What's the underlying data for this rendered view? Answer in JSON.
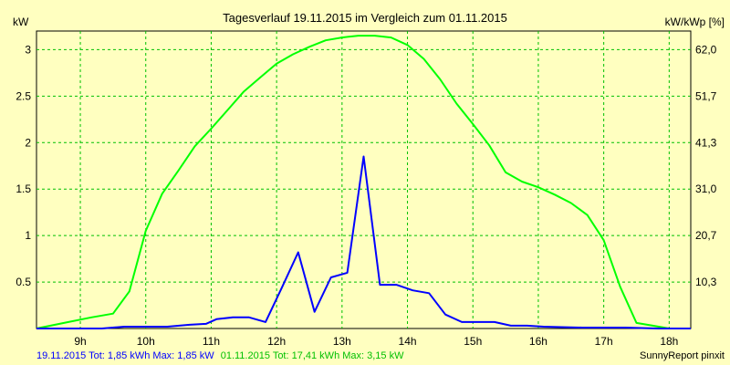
{
  "chart_data": {
    "type": "line",
    "title": "Tagesverlauf 19.11.2015 im Vergleich zum 01.11.2015",
    "ylabel_left": "kW",
    "ylabel_right": "kW/kWp [%]",
    "x_range_hours": [
      8.33,
      18.33
    ],
    "x_ticks": [
      {
        "h": 9,
        "label": "9h"
      },
      {
        "h": 10,
        "label": "10h"
      },
      {
        "h": 11,
        "label": "11h"
      },
      {
        "h": 12,
        "label": "12h"
      },
      {
        "h": 13,
        "label": "13h"
      },
      {
        "h": 14,
        "label": "14h"
      },
      {
        "h": 15,
        "label": "15h"
      },
      {
        "h": 16,
        "label": "16h"
      },
      {
        "h": 17,
        "label": "17h"
      },
      {
        "h": 18,
        "label": "18h"
      }
    ],
    "ylim": [
      0,
      3.2
    ],
    "y_ticks_left": [
      {
        "v": 0.5,
        "label": "0.5"
      },
      {
        "v": 1,
        "label": "1"
      },
      {
        "v": 1.5,
        "label": "1.5"
      },
      {
        "v": 2,
        "label": "2"
      },
      {
        "v": 2.5,
        "label": "2.5"
      },
      {
        "v": 3,
        "label": "3"
      }
    ],
    "y_ticks_right": [
      {
        "v": 0.5,
        "label": "10,3"
      },
      {
        "v": 1,
        "label": "20,7"
      },
      {
        "v": 1.5,
        "label": "31,0"
      },
      {
        "v": 2,
        "label": "41,3"
      },
      {
        "v": 2.5,
        "label": "51,7"
      },
      {
        "v": 3,
        "label": "62,0"
      }
    ],
    "grid": true,
    "series": [
      {
        "color": "#00ff00",
        "points": [
          [
            8.33,
            0.0
          ],
          [
            8.75,
            0.06
          ],
          [
            9.17,
            0.12
          ],
          [
            9.5,
            0.16
          ],
          [
            9.75,
            0.4
          ],
          [
            10.0,
            1.05
          ],
          [
            10.25,
            1.45
          ],
          [
            10.5,
            1.7
          ],
          [
            10.75,
            1.96
          ],
          [
            11.0,
            2.15
          ],
          [
            11.25,
            2.35
          ],
          [
            11.5,
            2.55
          ],
          [
            11.75,
            2.7
          ],
          [
            12.0,
            2.85
          ],
          [
            12.25,
            2.95
          ],
          [
            12.5,
            3.03
          ],
          [
            12.75,
            3.1
          ],
          [
            13.0,
            3.13
          ],
          [
            13.25,
            3.15
          ],
          [
            13.5,
            3.15
          ],
          [
            13.75,
            3.13
          ],
          [
            14.0,
            3.05
          ],
          [
            14.25,
            2.9
          ],
          [
            14.5,
            2.68
          ],
          [
            14.75,
            2.42
          ],
          [
            15.0,
            2.2
          ],
          [
            15.25,
            1.97
          ],
          [
            15.5,
            1.68
          ],
          [
            15.75,
            1.58
          ],
          [
            16.0,
            1.52
          ],
          [
            16.25,
            1.44
          ],
          [
            16.5,
            1.35
          ],
          [
            16.75,
            1.22
          ],
          [
            17.0,
            0.95
          ],
          [
            17.25,
            0.45
          ],
          [
            17.5,
            0.06
          ],
          [
            17.75,
            0.03
          ],
          [
            18.0,
            0.0
          ],
          [
            18.33,
            0.0
          ]
        ]
      },
      {
        "color": "#0000ff",
        "points": [
          [
            8.33,
            0.0
          ],
          [
            9.33,
            0.0
          ],
          [
            9.67,
            0.02
          ],
          [
            10.0,
            0.02
          ],
          [
            10.33,
            0.02
          ],
          [
            10.67,
            0.04
          ],
          [
            10.92,
            0.05
          ],
          [
            11.08,
            0.1
          ],
          [
            11.33,
            0.12
          ],
          [
            11.58,
            0.12
          ],
          [
            11.83,
            0.07
          ],
          [
            12.08,
            0.44
          ],
          [
            12.33,
            0.82
          ],
          [
            12.58,
            0.18
          ],
          [
            12.83,
            0.55
          ],
          [
            13.08,
            0.6
          ],
          [
            13.33,
            1.85
          ],
          [
            13.58,
            0.47
          ],
          [
            13.83,
            0.47
          ],
          [
            14.08,
            0.41
          ],
          [
            14.33,
            0.38
          ],
          [
            14.58,
            0.15
          ],
          [
            14.83,
            0.07
          ],
          [
            15.08,
            0.07
          ],
          [
            15.33,
            0.07
          ],
          [
            15.58,
            0.03
          ],
          [
            15.83,
            0.03
          ],
          [
            16.08,
            0.02
          ],
          [
            16.67,
            0.01
          ],
          [
            17.33,
            0.01
          ],
          [
            17.83,
            0.0
          ],
          [
            18.33,
            0.0
          ]
        ]
      }
    ]
  },
  "footer": {
    "series1_text": "19.11.2015 Tot: 1,85 kWh Max: 1,85 kW",
    "series1_color": "#0000ff",
    "series2_text": "01.11.2015 Tot: 17,41 kWh Max: 3,15 kW",
    "series2_color": "#00c000",
    "brand": "SunnyReport pinxit"
  }
}
